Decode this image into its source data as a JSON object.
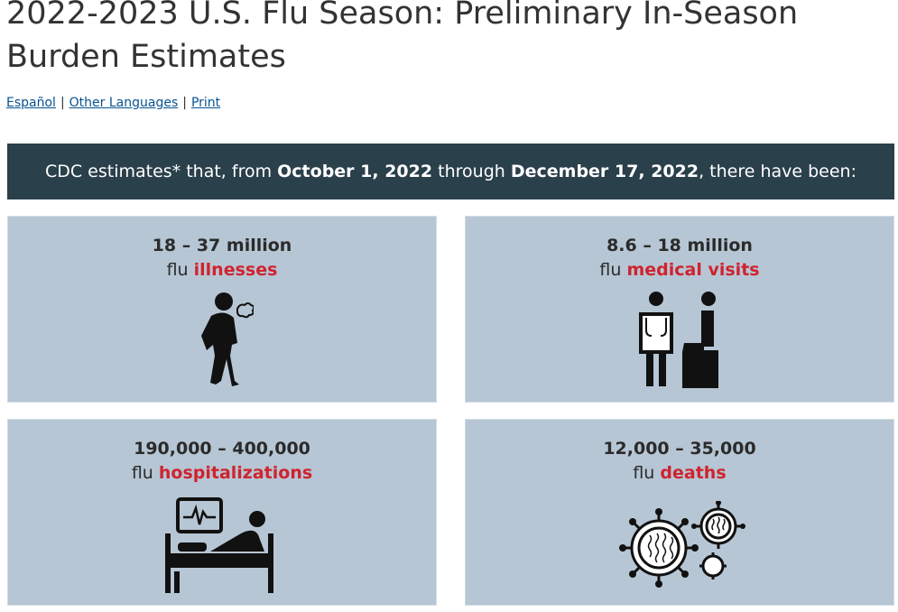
{
  "page": {
    "title": "2022-2023 U.S. Flu Season: Preliminary In-Season Burden Estimates"
  },
  "links": [
    {
      "label": "Español"
    },
    {
      "label": "Other Languages"
    },
    {
      "label": "Print"
    }
  ],
  "link_separator": "|",
  "banner": {
    "prefix": "CDC estimates* that, from ",
    "start_date": "October 1, 2022",
    "middle": " through ",
    "end_date": "December 17, 2022",
    "suffix": ", there have been:"
  },
  "cards": [
    {
      "value": "18 – 37 million",
      "prefix": "flu ",
      "metric": "illnesses",
      "icon": "sick-person-icon"
    },
    {
      "value": "8.6 – 18 million",
      "prefix": "flu ",
      "metric": "medical visits",
      "icon": "doctor-patient-icon"
    },
    {
      "value": "190,000 – 400,000",
      "prefix": "flu ",
      "metric": "hospitalizations",
      "icon": "hospital-bed-icon"
    },
    {
      "value": "12,000 – 35,000",
      "prefix": "flu ",
      "metric": "deaths",
      "icon": "virus-icon"
    }
  ],
  "colors": {
    "banner_bg": "#2a404b",
    "card_bg": "#b6c6d4",
    "metric_highlight": "#d0232f",
    "link": "#075290"
  }
}
